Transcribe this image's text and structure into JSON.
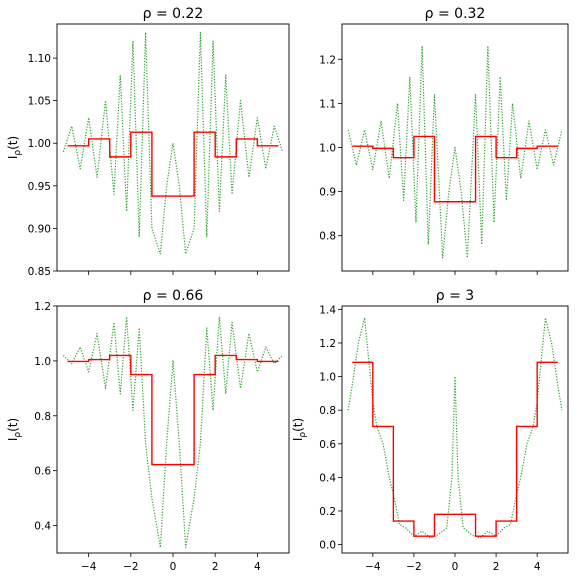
{
  "chart_data": [
    {
      "type": "line",
      "title": "ρ = 0.22",
      "ylabel": "I_ρ(t)",
      "xlim": [
        -5.5,
        5.5
      ],
      "ylim": [
        0.85,
        1.14
      ],
      "xticks": [
        -4,
        -2,
        0,
        2,
        4
      ],
      "xtick_labels": [
        "",
        "",
        "",
        "",
        ""
      ],
      "yticks": [
        0.85,
        0.9,
        0.95,
        1.0,
        1.05,
        1.1
      ],
      "ytick_labels": [
        "0.85",
        "0.90",
        "0.95",
        "1.00",
        "1.05",
        "1.10"
      ],
      "series": [
        {
          "style": "dotted",
          "color": "#2ca02c",
          "x": [
            -5.2,
            -4.8,
            -4.4,
            -4.0,
            -3.6,
            -3.2,
            -2.8,
            -2.5,
            -2.2,
            -1.9,
            -1.6,
            -1.3,
            -1.0,
            -0.6,
            -0.3,
            0.0,
            0.3,
            0.6,
            1.0,
            1.3,
            1.6,
            1.9,
            2.2,
            2.5,
            2.8,
            3.2,
            3.6,
            4.0,
            4.4,
            4.8,
            5.2
          ],
          "y": [
            0.99,
            1.02,
            0.97,
            1.03,
            0.96,
            1.05,
            0.94,
            1.08,
            0.92,
            1.12,
            0.89,
            1.13,
            0.9,
            0.87,
            0.95,
            1.0,
            0.95,
            0.87,
            0.9,
            1.13,
            0.89,
            1.12,
            0.92,
            1.08,
            0.94,
            1.05,
            0.96,
            1.03,
            0.97,
            1.02,
            0.99
          ]
        },
        {
          "style": "step",
          "color": "#ff0000",
          "edges": [
            -5,
            -4,
            -3,
            -2,
            -1,
            1,
            2,
            3,
            4,
            5
          ],
          "levels": [
            0.997,
            1.005,
            0.984,
            1.013,
            0.938,
            1.013,
            0.984,
            1.005,
            0.997
          ]
        }
      ]
    },
    {
      "type": "line",
      "title": "ρ = 0.32",
      "ylabel": "",
      "xlim": [
        -5.5,
        5.5
      ],
      "ylim": [
        0.72,
        1.28
      ],
      "xticks": [
        -4,
        -2,
        0,
        2,
        4
      ],
      "xtick_labels": [
        "",
        "",
        "",
        "",
        ""
      ],
      "yticks": [
        0.8,
        0.9,
        1.0,
        1.1,
        1.2
      ],
      "ytick_labels": [
        "0.8",
        "0.9",
        "1.0",
        "1.1",
        "1.2"
      ],
      "series": [
        {
          "style": "dotted",
          "color": "#2ca02c",
          "x": [
            -5.2,
            -4.8,
            -4.4,
            -4.0,
            -3.6,
            -3.2,
            -2.8,
            -2.5,
            -2.2,
            -1.9,
            -1.6,
            -1.3,
            -1.0,
            -0.6,
            -0.3,
            0.0,
            0.3,
            0.6,
            1.0,
            1.3,
            1.6,
            1.9,
            2.2,
            2.5,
            2.8,
            3.2,
            3.6,
            4.0,
            4.4,
            4.8,
            5.2
          ],
          "y": [
            1.04,
            0.96,
            1.04,
            0.95,
            1.06,
            0.93,
            1.1,
            0.88,
            1.16,
            0.83,
            1.23,
            0.78,
            1.12,
            0.75,
            0.9,
            1.0,
            0.9,
            0.75,
            1.12,
            0.78,
            1.23,
            0.83,
            1.16,
            0.88,
            1.1,
            0.93,
            1.06,
            0.95,
            1.04,
            0.96,
            1.04
          ]
        },
        {
          "style": "step",
          "color": "#ff0000",
          "edges": [
            -5,
            -4,
            -3,
            -2,
            -1,
            1,
            2,
            3,
            4,
            5
          ],
          "levels": [
            1.003,
            0.998,
            0.977,
            1.025,
            0.877,
            1.025,
            0.977,
            0.998,
            1.003
          ]
        }
      ]
    },
    {
      "type": "line",
      "title": "ρ = 0.66",
      "ylabel": "I_ρ(t)",
      "xlim": [
        -5.5,
        5.5
      ],
      "ylim": [
        0.3,
        1.2
      ],
      "xticks": [
        -4,
        -2,
        0,
        2,
        4
      ],
      "xtick_labels": [
        "−4",
        "−2",
        "0",
        "2",
        "4"
      ],
      "yticks": [
        0.4,
        0.6,
        0.8,
        1.0,
        1.2
      ],
      "ytick_labels": [
        "0.4",
        "0.6",
        "0.8",
        "1.0",
        "1.2"
      ],
      "series": [
        {
          "style": "dotted",
          "color": "#2ca02c",
          "x": [
            -5.2,
            -4.8,
            -4.4,
            -4.0,
            -3.6,
            -3.2,
            -2.8,
            -2.5,
            -2.2,
            -1.9,
            -1.6,
            -1.3,
            -1.0,
            -0.6,
            -0.3,
            0.0,
            0.3,
            0.6,
            1.0,
            1.3,
            1.6,
            1.9,
            2.2,
            2.5,
            2.8,
            3.2,
            3.6,
            4.0,
            4.4,
            4.8,
            5.2
          ],
          "y": [
            1.02,
            0.99,
            1.05,
            0.96,
            1.1,
            0.9,
            1.14,
            0.88,
            1.16,
            0.82,
            1.12,
            0.7,
            0.5,
            0.32,
            0.7,
            1.0,
            0.7,
            0.32,
            0.5,
            0.7,
            1.12,
            0.82,
            1.16,
            0.88,
            1.14,
            0.9,
            1.1,
            0.96,
            1.05,
            0.99,
            1.02
          ]
        },
        {
          "style": "step",
          "color": "#ff0000",
          "edges": [
            -5,
            -4,
            -3,
            -2,
            -1,
            1,
            2,
            3,
            4,
            5
          ],
          "levels": [
            0.998,
            1.005,
            1.02,
            0.95,
            0.622,
            0.95,
            1.02,
            1.005,
            0.998
          ]
        }
      ]
    },
    {
      "type": "line",
      "title": "ρ = 3",
      "ylabel": "I_ρ(t)",
      "xlim": [
        -5.5,
        5.5
      ],
      "ylim": [
        -0.05,
        1.42
      ],
      "xticks": [
        -4,
        -2,
        0,
        2,
        4
      ],
      "xtick_labels": [
        "−4",
        "−2",
        "0",
        "2",
        "4"
      ],
      "yticks": [
        0.0,
        0.2,
        0.4,
        0.6,
        0.8,
        1.0,
        1.2,
        1.4
      ],
      "ytick_labels": [
        "0.0",
        "0.2",
        "0.4",
        "0.6",
        "0.8",
        "1.0",
        "1.2",
        "1.4"
      ],
      "series": [
        {
          "style": "dotted",
          "color": "#2ca02c",
          "x": [
            -5.2,
            -5.0,
            -4.7,
            -4.4,
            -4.2,
            -4.0,
            -3.8,
            -3.5,
            -3.2,
            -3.0,
            -2.7,
            -2.4,
            -2.0,
            -1.6,
            -1.2,
            -0.8,
            -0.4,
            -0.15,
            0.0,
            0.15,
            0.4,
            0.8,
            1.2,
            1.6,
            2.0,
            2.4,
            2.7,
            3.0,
            3.2,
            3.5,
            3.8,
            4.0,
            4.2,
            4.4,
            4.7,
            5.0,
            5.2
          ],
          "y": [
            0.8,
            0.95,
            1.2,
            1.35,
            1.1,
            0.85,
            0.7,
            0.6,
            0.4,
            0.3,
            0.12,
            0.1,
            0.05,
            0.08,
            0.04,
            0.06,
            0.1,
            0.4,
            1.0,
            0.4,
            0.1,
            0.06,
            0.04,
            0.08,
            0.05,
            0.1,
            0.12,
            0.3,
            0.4,
            0.6,
            0.7,
            0.85,
            1.1,
            1.35,
            1.2,
            0.95,
            0.8
          ]
        },
        {
          "style": "step",
          "color": "#ff0000",
          "edges": [
            -5,
            -4,
            -3,
            -2,
            -1,
            1,
            2,
            3,
            4,
            5
          ],
          "levels": [
            1.085,
            0.703,
            0.14,
            0.05,
            0.18,
            0.05,
            0.14,
            0.703,
            1.085
          ]
        }
      ]
    }
  ]
}
